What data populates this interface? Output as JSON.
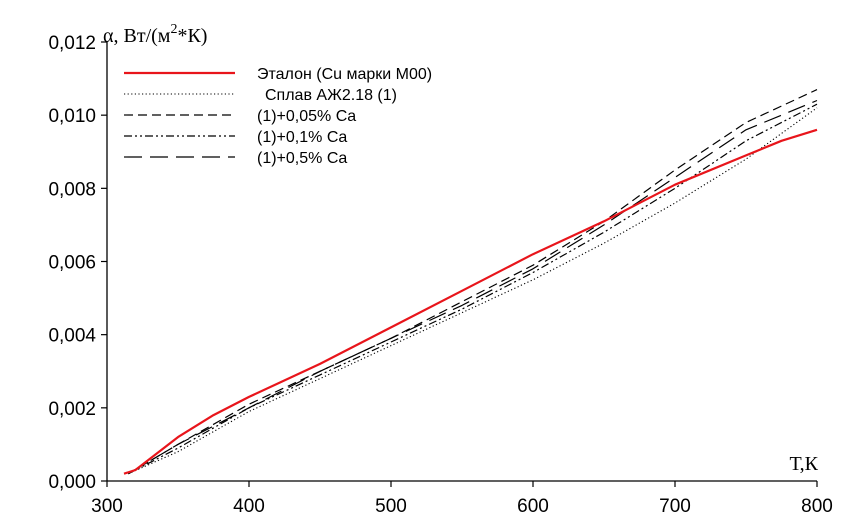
{
  "chart_data": {
    "type": "line",
    "ylabel": "α, Вт/(м2*К)",
    "ylabel_parts": {
      "symbol": "α",
      "unit_pre": "Вт/(м",
      "unit_sup": "2",
      "unit_post": "*К)"
    },
    "xlabel": "Т,К",
    "xlim": [
      300,
      800
    ],
    "ylim": [
      0,
      0.012
    ],
    "xticks": [
      300,
      400,
      500,
      600,
      700,
      800
    ],
    "xtick_labels": [
      "300",
      "400",
      "500",
      "600",
      "700",
      "800"
    ],
    "yticks": [
      0,
      0.002,
      0.004,
      0.006,
      0.008,
      0.01,
      0.012
    ],
    "ytick_labels": [
      "0,000",
      "0,002",
      "0,004",
      "0,006",
      "0,008",
      "0,010",
      "0,012"
    ],
    "grid": false,
    "legend_position": "top-left",
    "series": [
      {
        "name": "Эталон (Cu марки М00)",
        "color": "#e8151b",
        "dash": "solid",
        "points": [
          [
            312,
            0.0002
          ],
          [
            320,
            0.0003
          ],
          [
            350,
            0.0012
          ],
          [
            375,
            0.0018
          ],
          [
            400,
            0.0023
          ],
          [
            450,
            0.0032
          ],
          [
            500,
            0.0042
          ],
          [
            550,
            0.0052
          ],
          [
            600,
            0.0062
          ],
          [
            650,
            0.0071
          ],
          [
            700,
            0.0081
          ],
          [
            750,
            0.0089
          ],
          [
            775,
            0.0093
          ],
          [
            800,
            0.0096
          ]
        ]
      },
      {
        "name": "Сплав АЖ2.18 (1)",
        "color": "#000000",
        "dash": "dotted",
        "points": [
          [
            315,
            0.0002
          ],
          [
            350,
            0.0008
          ],
          [
            400,
            0.0019
          ],
          [
            450,
            0.0028
          ],
          [
            500,
            0.0037
          ],
          [
            550,
            0.0046
          ],
          [
            600,
            0.0055
          ],
          [
            650,
            0.0065
          ],
          [
            700,
            0.0076
          ],
          [
            750,
            0.0088
          ],
          [
            800,
            0.0102
          ]
        ]
      },
      {
        "name": "(1)+0,05% Ca",
        "color": "#000000",
        "dash": "dashed",
        "points": [
          [
            315,
            0.0002
          ],
          [
            350,
            0.001
          ],
          [
            400,
            0.0021
          ],
          [
            450,
            0.003
          ],
          [
            500,
            0.0039
          ],
          [
            550,
            0.0049
          ],
          [
            600,
            0.0059
          ],
          [
            650,
            0.0071
          ],
          [
            700,
            0.0085
          ],
          [
            750,
            0.0098
          ],
          [
            800,
            0.0107
          ]
        ]
      },
      {
        "name": "(1)+0,1% Ca",
        "color": "#000000",
        "dash": "dashdotdot",
        "points": [
          [
            315,
            0.0002
          ],
          [
            350,
            0.0009
          ],
          [
            400,
            0.002
          ],
          [
            450,
            0.0029
          ],
          [
            500,
            0.0038
          ],
          [
            550,
            0.0047
          ],
          [
            600,
            0.0057
          ],
          [
            650,
            0.0068
          ],
          [
            700,
            0.008
          ],
          [
            750,
            0.0093
          ],
          [
            800,
            0.0103
          ]
        ]
      },
      {
        "name": "(1)+0,5% Ca",
        "color": "#000000",
        "dash": "longdash",
        "points": [
          [
            315,
            0.0002
          ],
          [
            350,
            0.001
          ],
          [
            400,
            0.002
          ],
          [
            450,
            0.003
          ],
          [
            500,
            0.0039
          ],
          [
            550,
            0.0048
          ],
          [
            600,
            0.0058
          ],
          [
            650,
            0.007
          ],
          [
            700,
            0.0083
          ],
          [
            750,
            0.0096
          ],
          [
            800,
            0.0104
          ]
        ]
      }
    ]
  }
}
